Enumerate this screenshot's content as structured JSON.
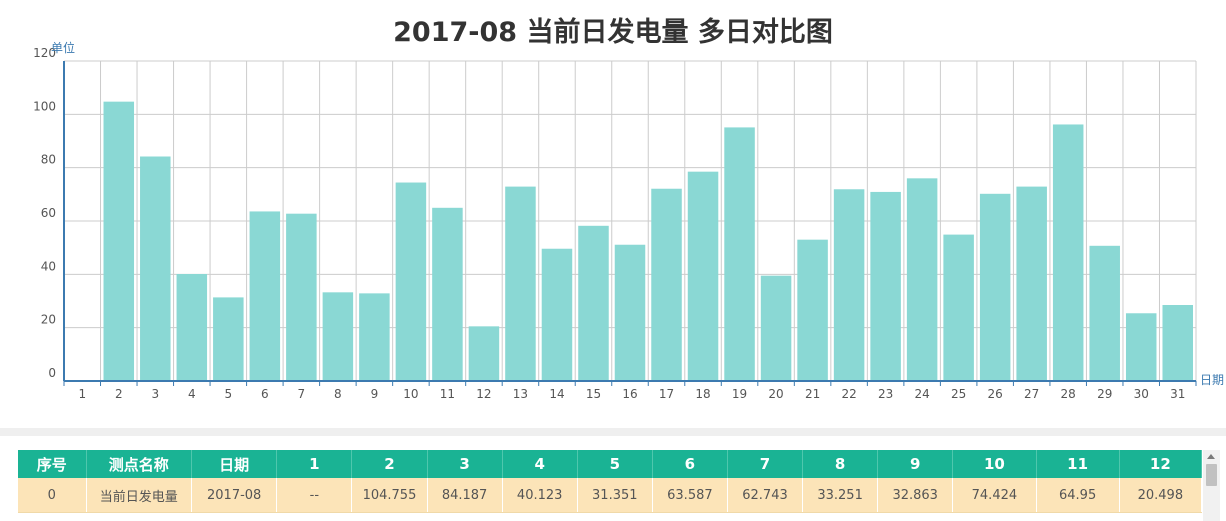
{
  "chart_data": {
    "type": "bar",
    "title": "2017-08 当前日发电量 多日对比图",
    "ylabel": "单位",
    "xlabel": "日期",
    "ylim": [
      0,
      120
    ],
    "yticks": [
      0,
      20,
      40,
      60,
      80,
      100,
      120
    ],
    "grid": true,
    "categories": [
      "1",
      "2",
      "3",
      "4",
      "5",
      "6",
      "7",
      "8",
      "9",
      "10",
      "11",
      "12",
      "13",
      "14",
      "15",
      "16",
      "17",
      "18",
      "19",
      "20",
      "21",
      "22",
      "23",
      "24",
      "25",
      "26",
      "27",
      "28",
      "29",
      "30",
      "31"
    ],
    "values": [
      null,
      104.755,
      84.187,
      40.123,
      31.351,
      63.587,
      62.743,
      33.251,
      32.863,
      74.424,
      64.95,
      20.498,
      72.9,
      49.6,
      58.2,
      51.1,
      72.1,
      78.5,
      95.1,
      39.5,
      53.0,
      71.9,
      70.9,
      76.0,
      54.9,
      70.2,
      72.9,
      96.2,
      50.7,
      25.4,
      28.5
    ],
    "bar_color": "#8ad8d4",
    "axis_color": "#3c7ab0"
  },
  "table": {
    "header_color": "#1ab394",
    "row_color": "#fce4b8",
    "headers": [
      "序号",
      "测点名称",
      "日期",
      "1",
      "2",
      "3",
      "4",
      "5",
      "6",
      "7",
      "8",
      "9",
      "10",
      "11",
      "12"
    ],
    "rows": [
      [
        "0",
        "当前日发电量",
        "2017-08",
        "--",
        "104.755",
        "84.187",
        "40.123",
        "31.351",
        "63.587",
        "62.743",
        "33.251",
        "32.863",
        "74.424",
        "64.95",
        "20.498"
      ]
    ]
  }
}
